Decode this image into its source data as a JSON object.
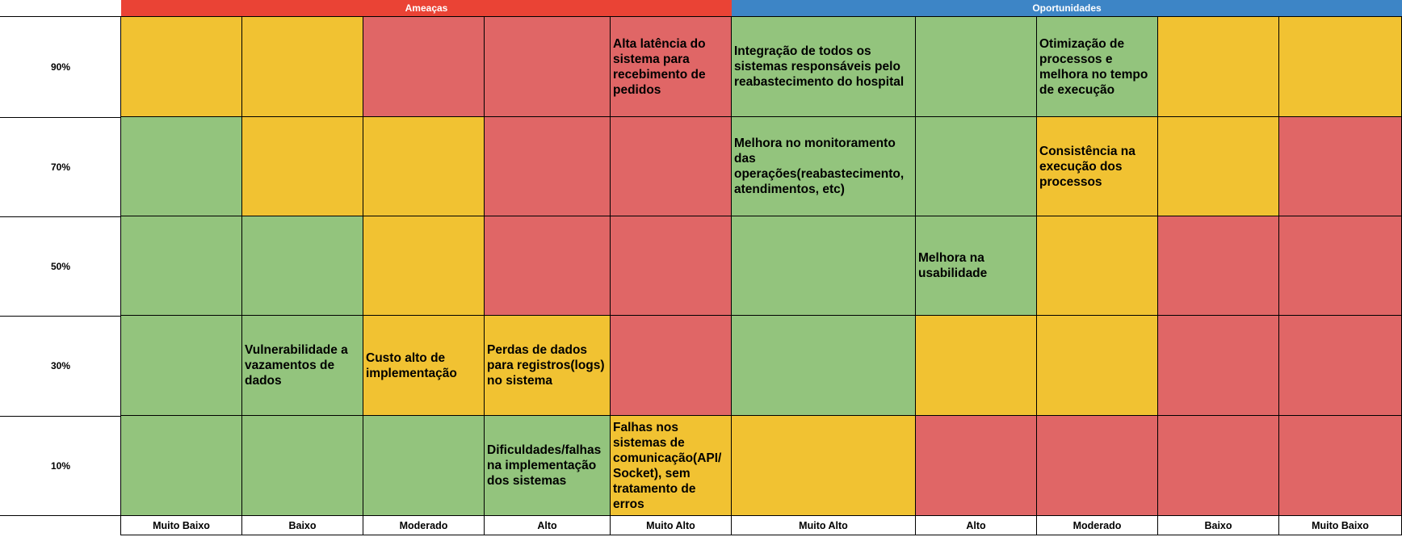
{
  "headers": {
    "threats": "Ameaças",
    "opportunities": "Oportunidades"
  },
  "rows": [
    "90%",
    "70%",
    "50%",
    "30%",
    "10%"
  ],
  "columns": [
    "Muito Baixo",
    "Baixo",
    "Moderado",
    "Alto",
    "Muito Alto",
    "Muito Alto",
    "Alto",
    "Moderado",
    "Baixo",
    "Muito Baixo"
  ],
  "colors": {
    "green": "#93c47d",
    "yellow": "#f1c232",
    "red": "#e06666",
    "threats_header": "#ea4335",
    "opportunities_header": "#3d85c6"
  },
  "cells": {
    "r90": [
      "",
      "",
      "",
      "",
      "Alta latência do sistema para recebimento de pedidos",
      "Integração de todos os sistemas responsáveis pelo reabastecimento do hospital",
      "",
      "Otimização de processos e melhora no tempo de execução",
      "",
      ""
    ],
    "r70": [
      "",
      "",
      "",
      "",
      "",
      "Melhora no monitoramento das operações(reabastecimento, atendimentos, etc)",
      "",
      "Consistência na execução dos processos",
      "",
      ""
    ],
    "r50": [
      "",
      "",
      "",
      "",
      "",
      "",
      "Melhora na usabilidade",
      "",
      "",
      ""
    ],
    "r30": [
      "",
      "Vulnerabilidade a vazamentos de dados",
      "Custo alto de implementação",
      "Perdas de dados para registros(logs) no sistema",
      "",
      "",
      "",
      "",
      "",
      ""
    ],
    "r10": [
      "",
      "",
      "",
      "Dificuldades/falhas na implementação dos sistemas",
      "Falhas nos sistemas de comunicação(API/ Socket), sem tratamento de erros",
      "",
      "",
      "",
      "",
      ""
    ]
  }
}
